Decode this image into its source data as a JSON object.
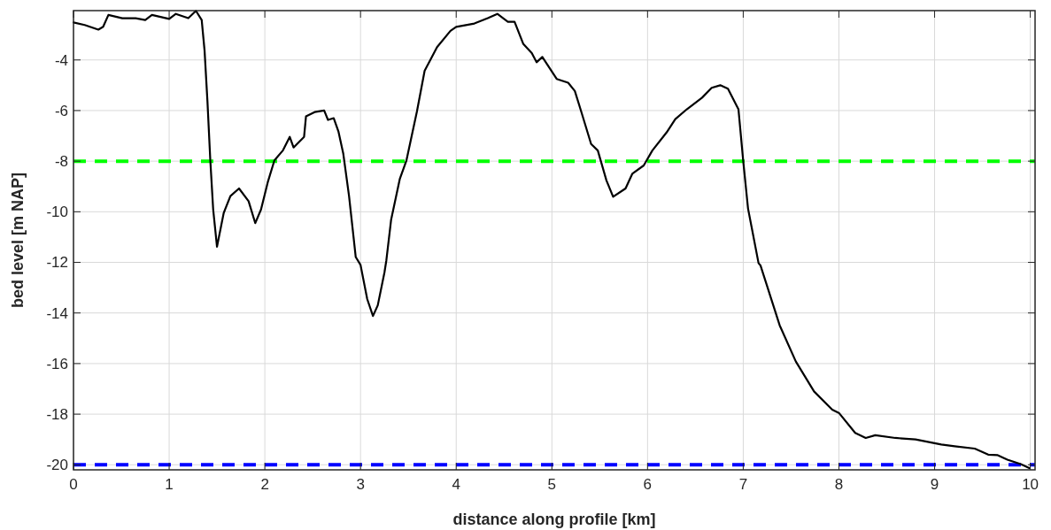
{
  "chart_data": {
    "type": "line",
    "xlabel": "distance along profile [km]",
    "ylabel": "bed level [m NAP]",
    "xlim": [
      0,
      10.05
    ],
    "ylim": [
      -20.2,
      -2.05
    ],
    "xticks": [
      0,
      1,
      2,
      3,
      4,
      5,
      6,
      7,
      8,
      9,
      10
    ],
    "yticks": [
      -20,
      -18,
      -16,
      -14,
      -12,
      -10,
      -8,
      -6,
      -4
    ],
    "grid": true,
    "marker": "none",
    "line_style": "solid",
    "series": [
      {
        "color": "#000000",
        "x": [
          0,
          0.117,
          0.26,
          0.31,
          0.365,
          0.51,
          0.65,
          0.75,
          0.82,
          1.0,
          1.07,
          1.2,
          1.28,
          1.34,
          1.37,
          1.4,
          1.43,
          1.46,
          1.5,
          1.57,
          1.64,
          1.73,
          1.83,
          1.9,
          1.96,
          2.03,
          2.1,
          2.19,
          2.26,
          2.3,
          2.41,
          2.43,
          2.52,
          2.62,
          2.66,
          2.72,
          2.77,
          2.82,
          2.88,
          2.95,
          3.0,
          3.07,
          3.13,
          3.18,
          3.25,
          3.27,
          3.32,
          3.41,
          3.48,
          3.59,
          3.67,
          3.8,
          3.94,
          4.0,
          4.19,
          4.33,
          4.43,
          4.54,
          4.61,
          4.7,
          4.79,
          4.84,
          4.9,
          5.05,
          5.17,
          5.24,
          5.31,
          5.41,
          5.48,
          5.57,
          5.64,
          5.77,
          5.84,
          5.96,
          6.05,
          6.2,
          6.29,
          6.41,
          6.57,
          6.67,
          6.76,
          6.84,
          6.95,
          7.0,
          7.05,
          7.16,
          7.18,
          7.38,
          7.55,
          7.74,
          7.93,
          8.0,
          8.17,
          8.28,
          8.38,
          8.59,
          8.8,
          9.07,
          9.21,
          9.42,
          9.56,
          9.66,
          9.76,
          9.9,
          9.99
        ],
        "values": [
          -2.52,
          -2.62,
          -2.8,
          -2.69,
          -2.22,
          -2.35,
          -2.35,
          -2.42,
          -2.22,
          -2.38,
          -2.18,
          -2.35,
          -2.06,
          -2.42,
          -3.63,
          -5.63,
          -7.97,
          -9.91,
          -11.38,
          -10.05,
          -9.38,
          -9.08,
          -9.58,
          -10.45,
          -9.91,
          -8.84,
          -7.97,
          -7.57,
          -7.04,
          -7.46,
          -7.04,
          -6.23,
          -6.06,
          -6.0,
          -6.37,
          -6.3,
          -6.84,
          -7.71,
          -9.38,
          -11.79,
          -12.1,
          -13.45,
          -14.12,
          -13.7,
          -12.4,
          -11.92,
          -10.31,
          -8.71,
          -7.97,
          -6.03,
          -4.43,
          -3.49,
          -2.85,
          -2.69,
          -2.56,
          -2.35,
          -2.18,
          -2.49,
          -2.49,
          -3.36,
          -3.73,
          -4.09,
          -3.88,
          -4.75,
          -4.9,
          -5.23,
          -6.08,
          -7.32,
          -7.58,
          -8.76,
          -9.41,
          -9.08,
          -8.5,
          -8.17,
          -7.58,
          -6.86,
          -6.34,
          -5.95,
          -5.49,
          -5.1,
          -5.0,
          -5.14,
          -5.95,
          -8.0,
          -9.87,
          -12.03,
          -12.12,
          -14.48,
          -15.92,
          -17.1,
          -17.82,
          -17.95,
          -18.74,
          -18.94,
          -18.83,
          -18.94,
          -19.0,
          -19.2,
          -19.27,
          -19.36,
          -19.6,
          -19.62,
          -19.8,
          -19.97,
          -20.13
        ]
      }
    ],
    "ref_lines": [
      {
        "axis": "y",
        "value": -8,
        "color": "#00ff00",
        "line_style": "dashed"
      },
      {
        "axis": "y",
        "value": -20,
        "color": "#0000ff",
        "line_style": "dashed"
      }
    ]
  }
}
